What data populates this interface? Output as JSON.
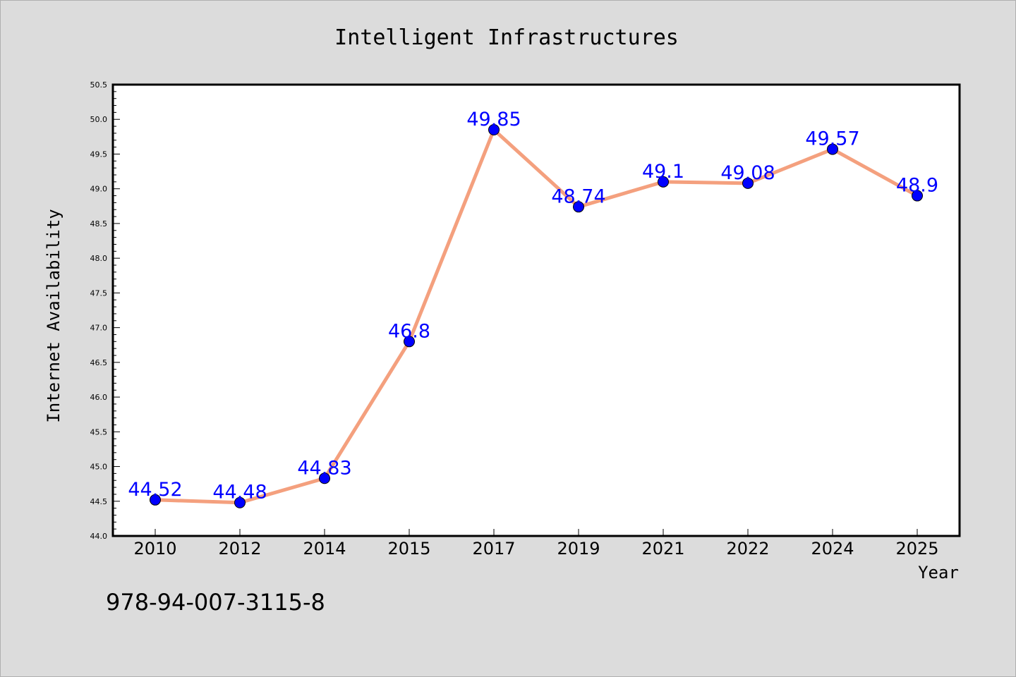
{
  "chart_data": {
    "type": "line",
    "title": "Intelligent Infrastructures",
    "xlabel": "Year",
    "ylabel": "Internet Availability",
    "categories": [
      "2010",
      "2012",
      "2014",
      "2015",
      "2017",
      "2019",
      "2021",
      "2022",
      "2024",
      "2025"
    ],
    "series": [
      {
        "values": [
          44.52,
          44.48,
          44.83,
          46.8,
          49.85,
          48.74,
          49.1,
          49.08,
          49.57,
          48.9
        ],
        "labels": [
          "44.52",
          "44.48",
          "44.83",
          "46.8",
          "49.85",
          "48.74",
          "49.1",
          "49.08",
          "49.57",
          "48.9"
        ],
        "line_color": "#f4a07e",
        "marker_color": "#0000ff"
      }
    ],
    "ylim": [
      44.0,
      50.5
    ],
    "yticks": [
      "44.0",
      "44.5",
      "45.0",
      "45.5",
      "46.0",
      "46.5",
      "47.0",
      "47.5",
      "48.0",
      "48.5",
      "49.0",
      "49.5",
      "50.0",
      "50.5"
    ],
    "grid": false,
    "legend": "none"
  },
  "footnote": "978-94-007-3115-8"
}
